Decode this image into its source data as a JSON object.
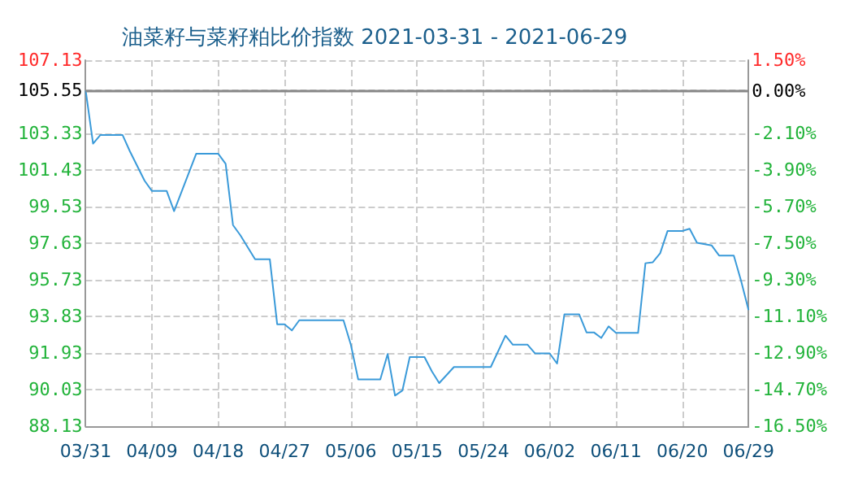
{
  "chart_data": {
    "type": "line",
    "title": "油菜籽与菜籽粕比价指数 2021-03-31 - 2021-06-29",
    "x": [
      "2021-03-31",
      "2021-04-01",
      "2021-04-02",
      "2021-04-05",
      "2021-04-06",
      "2021-04-08",
      "2021-04-09",
      "2021-04-11",
      "2021-04-12",
      "2021-04-15",
      "2021-04-18",
      "2021-04-19",
      "2021-04-20",
      "2021-04-21",
      "2021-04-23",
      "2021-04-25",
      "2021-04-26",
      "2021-04-27",
      "2021-04-28",
      "2021-04-29",
      "2021-05-05",
      "2021-05-06",
      "2021-05-07",
      "2021-05-10",
      "2021-05-11",
      "2021-05-12",
      "2021-05-13",
      "2021-05-14",
      "2021-05-16",
      "2021-05-17",
      "2021-05-18",
      "2021-05-20",
      "2021-05-25",
      "2021-05-27",
      "2021-05-28",
      "2021-05-30",
      "2021-05-31",
      "2021-06-02",
      "2021-06-03",
      "2021-06-04",
      "2021-06-06",
      "2021-06-07",
      "2021-06-08",
      "2021-06-09",
      "2021-06-10",
      "2021-06-11",
      "2021-06-14",
      "2021-06-15",
      "2021-06-16",
      "2021-06-17",
      "2021-06-18",
      "2021-06-20",
      "2021-06-21",
      "2021-06-22",
      "2021-06-24",
      "2021-06-25",
      "2021-06-27",
      "2021-06-28",
      "2021-06-29"
    ],
    "series": [
      {
        "color": "#3a9ad9",
        "values": [
          105.55,
          102.8,
          103.25,
          103.25,
          102.4,
          100.87,
          100.34,
          100.34,
          99.29,
          102.27,
          102.27,
          101.75,
          98.57,
          98.04,
          96.8,
          96.8,
          93.42,
          93.42,
          93.1,
          93.63,
          93.63,
          92.36,
          90.56,
          90.56,
          91.88,
          89.72,
          89.98,
          91.72,
          91.72,
          90.98,
          90.37,
          91.2,
          91.2,
          92.83,
          92.36,
          92.36,
          91.91,
          91.91,
          91.38,
          93.94,
          93.94,
          93.0,
          93.0,
          92.71,
          93.31,
          92.97,
          92.97,
          96.59,
          96.64,
          97.11,
          98.26,
          98.26,
          98.38,
          97.65,
          97.51,
          96.99,
          96.99,
          95.66,
          94.16
        ]
      }
    ],
    "xlim": [
      "2021-03-31",
      "2021-06-29"
    ],
    "xticks": [
      {
        "value": "2021-03-31",
        "label": "03/31"
      },
      {
        "value": "2021-04-09",
        "label": "04/09"
      },
      {
        "value": "2021-04-18",
        "label": "04/18"
      },
      {
        "value": "2021-04-27",
        "label": "04/27"
      },
      {
        "value": "2021-05-06",
        "label": "05/06"
      },
      {
        "value": "2021-05-15",
        "label": "05/15"
      },
      {
        "value": "2021-05-24",
        "label": "05/24"
      },
      {
        "value": "2021-06-02",
        "label": "06/02"
      },
      {
        "value": "2021-06-11",
        "label": "06/11"
      },
      {
        "value": "2021-06-20",
        "label": "06/20"
      },
      {
        "value": "2021-06-29",
        "label": "06/29"
      }
    ],
    "ylim": [
      88.13,
      107.13
    ],
    "yticks": [
      88.13,
      90.03,
      91.93,
      93.83,
      95.73,
      97.63,
      99.53,
      101.43,
      103.33,
      105.55,
      107.13
    ],
    "y2lim": [
      -16.5,
      1.5
    ],
    "y2ticks": [
      {
        "value": -16.5,
        "label": "-16.50%"
      },
      {
        "value": -14.7,
        "label": "-14.70%"
      },
      {
        "value": -12.9,
        "label": "-12.90%"
      },
      {
        "value": -11.1,
        "label": "-11.10%"
      },
      {
        "value": -9.3,
        "label": "-9.30%"
      },
      {
        "value": -7.5,
        "label": "-7.50%"
      },
      {
        "value": -5.7,
        "label": "-5.70%"
      },
      {
        "value": -3.9,
        "label": "-3.90%"
      },
      {
        "value": -2.1,
        "label": "-2.10%"
      },
      {
        "value": 0,
        "label": "0.00%"
      },
      {
        "value": 1.5,
        "label": "1.50%"
      }
    ],
    "ref_lines": [
      {
        "axis": "y",
        "value": 105.55,
        "color": "#888888"
      }
    ],
    "grid": true,
    "marker": "none",
    "line_style": "solid"
  }
}
